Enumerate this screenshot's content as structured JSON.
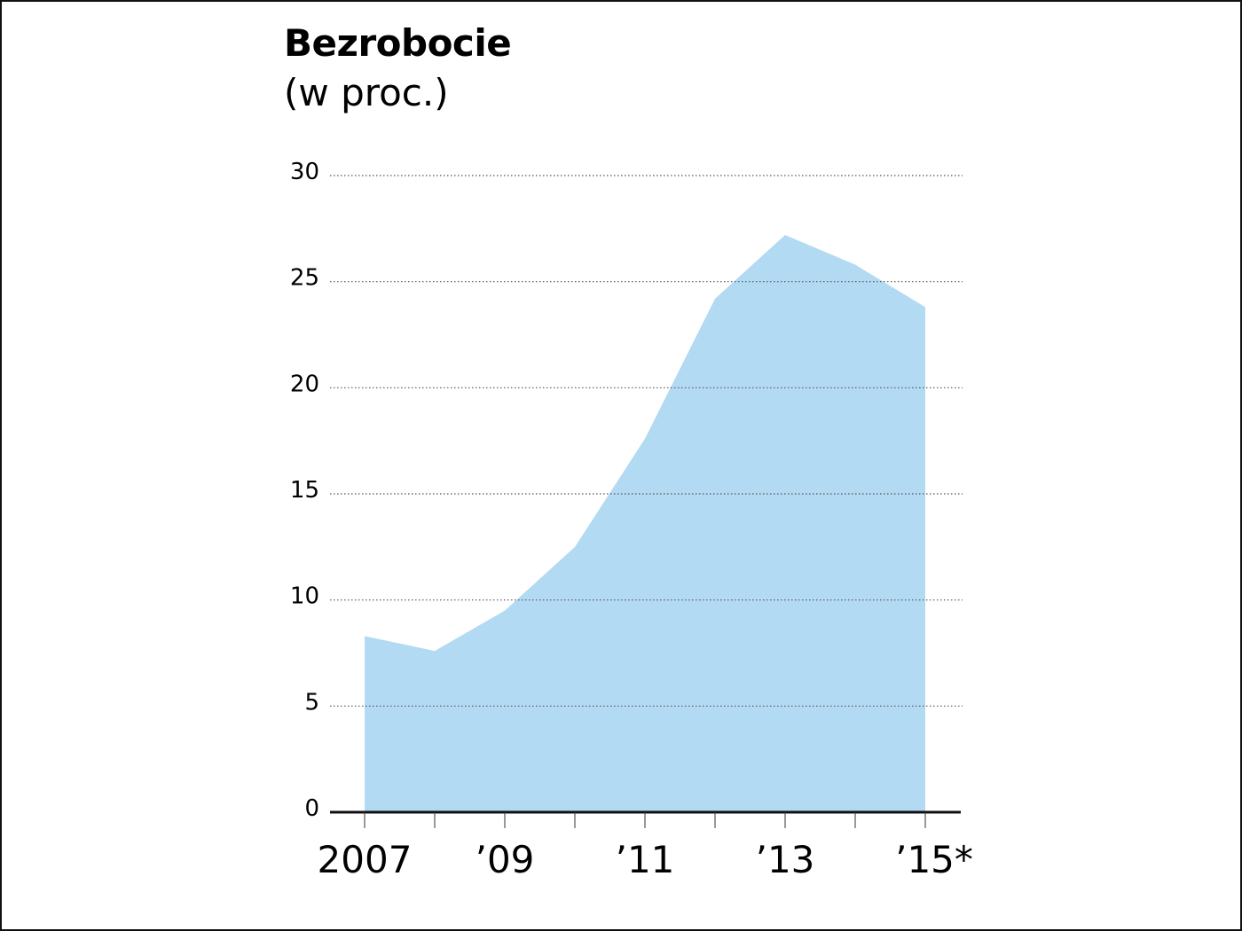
{
  "chart_data": {
    "type": "area",
    "title": "Bezrobocie",
    "subtitle": "(w proc.)",
    "xlabel": "",
    "ylabel": "",
    "x": [
      2007,
      2008,
      2009,
      2010,
      2011,
      2012,
      2013,
      2014,
      2015
    ],
    "values": [
      8.3,
      7.6,
      9.5,
      12.5,
      17.6,
      24.2,
      27.2,
      25.8,
      23.8
    ],
    "x_tick_labels": [
      {
        "x": 2007,
        "label": "2007"
      },
      {
        "x": 2009,
        "label": "’09"
      },
      {
        "x": 2011,
        "label": "’11"
      },
      {
        "x": 2013,
        "label": "’13"
      },
      {
        "x": 2015,
        "label": "’15*"
      }
    ],
    "y_ticks": [
      0,
      5,
      10,
      15,
      20,
      25,
      30
    ],
    "ylim": [
      0,
      30
    ],
    "grid": true,
    "fill_color": "#b3daf3",
    "axis_color": "#111111"
  }
}
